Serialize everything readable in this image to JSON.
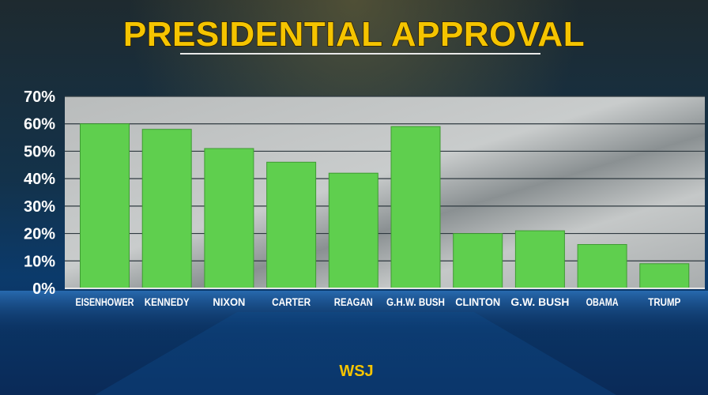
{
  "colors": {
    "title": "#f5c400",
    "bar": "#5fcf4e",
    "source": "#f5c400"
  },
  "chart_data": {
    "type": "bar",
    "title": "PRESIDENTIAL APPROVAL",
    "categories": [
      "EISENHOWER",
      "KENNEDY",
      "NIXON",
      "CARTER",
      "REAGAN",
      "G.H.W. BUSH",
      "CLINTON",
      "G.W. BUSH",
      "OBAMA",
      "TRUMP"
    ],
    "values": [
      60,
      58,
      51,
      46,
      42,
      59,
      20,
      21,
      16,
      9
    ],
    "yticks": [
      "0%",
      "10%",
      "20%",
      "30%",
      "40%",
      "50%",
      "60%",
      "70%"
    ],
    "ylim": [
      0,
      70
    ],
    "xlabel": "",
    "ylabel": "",
    "grid": true,
    "source": "WSJ"
  }
}
